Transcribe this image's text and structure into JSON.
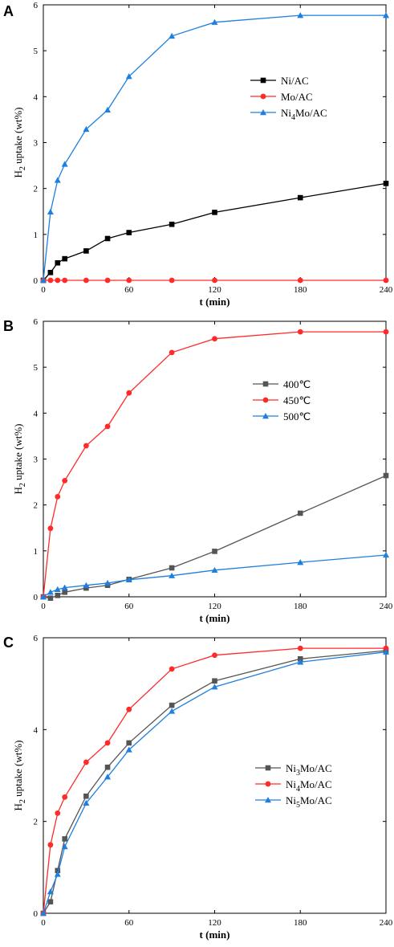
{
  "chart_data": [
    {
      "panel": "A",
      "type": "line",
      "xlabel": "t (min)",
      "ylabel": "H2 uptake (wt%)",
      "xlim": [
        0,
        240
      ],
      "ylim": [
        0,
        6
      ],
      "xticks": [
        0,
        60,
        120,
        180,
        240
      ],
      "yticks": [
        0,
        1,
        2,
        3,
        4,
        5,
        6
      ],
      "legend_position": "right-middle",
      "series": [
        {
          "name": "Ni/AC",
          "name_parts": [
            "Ni/AC"
          ],
          "color": "#000000",
          "marker": "square",
          "x": [
            0,
            5,
            10,
            15,
            30,
            45,
            60,
            90,
            120,
            180,
            240
          ],
          "y": [
            0,
            0.17,
            0.38,
            0.47,
            0.64,
            0.91,
            1.04,
            1.22,
            1.48,
            1.8,
            2.11
          ]
        },
        {
          "name": "Mo/AC",
          "name_parts": [
            "Mo/AC"
          ],
          "color": "#ff2a2a",
          "marker": "circle",
          "x": [
            0,
            5,
            10,
            15,
            30,
            45,
            60,
            90,
            120,
            180,
            240
          ],
          "y": [
            0,
            0,
            0,
            0,
            0,
            0,
            0,
            0,
            0,
            0,
            0
          ]
        },
        {
          "name": "Ni4Mo/AC",
          "name_parts": [
            "Ni",
            "4",
            "Mo/AC"
          ],
          "color": "#1e7fe0",
          "marker": "triangle",
          "x": [
            0,
            5,
            10,
            15,
            30,
            45,
            60,
            90,
            120,
            180,
            240
          ],
          "y": [
            0,
            1.49,
            2.18,
            2.53,
            3.29,
            3.71,
            4.44,
            5.32,
            5.62,
            5.77,
            5.77
          ]
        }
      ]
    },
    {
      "panel": "B",
      "type": "line",
      "xlabel": "t (min)",
      "ylabel": "H2 uptake (wt%)",
      "xlim": [
        0,
        240
      ],
      "ylim": [
        0,
        6
      ],
      "xticks": [
        0,
        60,
        120,
        180,
        240
      ],
      "yticks": [
        0,
        1,
        2,
        3,
        4,
        5,
        6
      ],
      "legend_position": "right-middle",
      "series": [
        {
          "name": "400℃",
          "name_parts": [
            "400℃"
          ],
          "color": "#555555",
          "marker": "square",
          "x": [
            0,
            5,
            10,
            15,
            30,
            45,
            60,
            90,
            120,
            180,
            240
          ],
          "y": [
            0,
            -0.03,
            0.03,
            0.1,
            0.19,
            0.25,
            0.38,
            0.63,
            0.99,
            1.82,
            2.64
          ]
        },
        {
          "name": "450℃",
          "name_parts": [
            "450℃"
          ],
          "color": "#ff2a2a",
          "marker": "circle",
          "x": [
            0,
            5,
            10,
            15,
            30,
            45,
            60,
            90,
            120,
            180,
            240
          ],
          "y": [
            0,
            1.49,
            2.18,
            2.53,
            3.29,
            3.71,
            4.44,
            5.32,
            5.62,
            5.77,
            5.77
          ]
        },
        {
          "name": "500℃",
          "name_parts": [
            "500℃"
          ],
          "color": "#1e7fe0",
          "marker": "triangle",
          "x": [
            0,
            5,
            10,
            15,
            30,
            45,
            60,
            90,
            120,
            180,
            240
          ],
          "y": [
            0,
            0.1,
            0.16,
            0.2,
            0.25,
            0.3,
            0.37,
            0.46,
            0.58,
            0.75,
            0.91
          ]
        }
      ]
    },
    {
      "panel": "C",
      "type": "line",
      "xlabel": "t (min)",
      "ylabel": "H2 uptake (wt%)",
      "xlim": [
        0,
        240
      ],
      "ylim": [
        0,
        6
      ],
      "xticks": [
        0,
        60,
        120,
        180,
        240
      ],
      "yticks": [
        0,
        2,
        4,
        6
      ],
      "legend_position": "right-middle",
      "series": [
        {
          "name": "Ni3Mo/AC",
          "name_parts": [
            "Ni",
            "3",
            "Mo/AC"
          ],
          "color": "#555555",
          "marker": "square",
          "x": [
            0,
            5,
            10,
            15,
            30,
            45,
            60,
            90,
            120,
            180,
            240
          ],
          "y": [
            0,
            0.25,
            0.93,
            1.62,
            2.55,
            3.18,
            3.71,
            4.53,
            5.06,
            5.54,
            5.72
          ]
        },
        {
          "name": "Ni4Mo/AC",
          "name_parts": [
            "Ni",
            "4",
            "Mo/AC"
          ],
          "color": "#ff2a2a",
          "marker": "circle",
          "x": [
            0,
            5,
            10,
            15,
            30,
            45,
            60,
            90,
            120,
            180,
            240
          ],
          "y": [
            0,
            1.49,
            2.18,
            2.53,
            3.29,
            3.71,
            4.44,
            5.32,
            5.62,
            5.77,
            5.77
          ]
        },
        {
          "name": "Ni5Mo/AC",
          "name_parts": [
            "Ni",
            "5",
            "Mo/AC"
          ],
          "color": "#1e7fe0",
          "marker": "triangle",
          "x": [
            0,
            5,
            10,
            15,
            30,
            45,
            60,
            90,
            120,
            180,
            240
          ],
          "y": [
            0,
            0.47,
            0.85,
            1.45,
            2.4,
            2.97,
            3.56,
            4.4,
            4.93,
            5.47,
            5.69
          ]
        }
      ]
    }
  ]
}
